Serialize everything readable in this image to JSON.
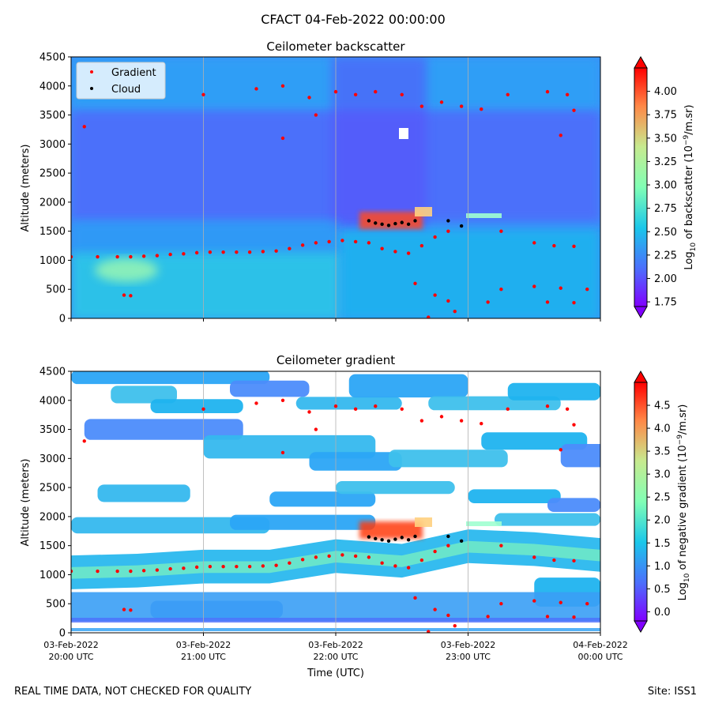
{
  "figure": {
    "suptitle": "CFACT 04-Feb-2022 00:00:00",
    "footer_left": "REAL TIME DATA, NOT CHECKED FOR QUALITY",
    "footer_right": "Site: ISS1"
  },
  "chart_data": [
    {
      "type": "heatmap",
      "title": "Ceilometer backscatter",
      "xlabel": "",
      "ylabel": "Altitude (meters)",
      "ylim": [
        0,
        4500
      ],
      "yticks": [
        "0",
        "500",
        "1000",
        "1500",
        "2000",
        "2500",
        "3000",
        "3500",
        "4000",
        "4500"
      ],
      "xlim": [
        "2022-02-03T20:00",
        "2022-02-04T00:00"
      ],
      "xticks": [],
      "grid": "vertical",
      "legend_location": "upper-left",
      "legend": [
        {
          "label": "Gradient",
          "color": "#ff0000"
        },
        {
          "label": "Cloud",
          "color": "#000000"
        }
      ],
      "colorbar": {
        "label_pre": "Log",
        "label_sub": "10",
        "label_mid": " of backscatter (10",
        "label_sup": "−9",
        "label_post": "/m.sr)",
        "range": [
          1.7,
          4.25
        ],
        "ticks": [
          "1.75",
          "2.00",
          "2.25",
          "2.50",
          "2.75",
          "3.00",
          "3.25",
          "3.50",
          "3.75",
          "4.00"
        ],
        "extend": "both",
        "colormap": "rainbow"
      },
      "background_level": 2.35,
      "cloud_points": [
        [
          22.25,
          1680
        ],
        [
          22.3,
          1640
        ],
        [
          22.35,
          1620
        ],
        [
          22.4,
          1600
        ],
        [
          22.45,
          1630
        ],
        [
          22.5,
          1650
        ],
        [
          22.55,
          1620
        ],
        [
          22.6,
          1680
        ],
        [
          22.85,
          1680
        ],
        [
          22.95,
          1590
        ]
      ],
      "gradient_points": [
        [
          20.0,
          1060
        ],
        [
          20.2,
          1060
        ],
        [
          20.35,
          1060
        ],
        [
          20.45,
          1060
        ],
        [
          20.55,
          1070
        ],
        [
          20.65,
          1080
        ],
        [
          20.75,
          1100
        ],
        [
          20.85,
          1110
        ],
        [
          20.95,
          1130
        ],
        [
          21.05,
          1140
        ],
        [
          21.15,
          1140
        ],
        [
          21.25,
          1140
        ],
        [
          21.35,
          1140
        ],
        [
          21.45,
          1150
        ],
        [
          21.55,
          1160
        ],
        [
          21.65,
          1200
        ],
        [
          21.75,
          1260
        ],
        [
          21.85,
          1300
        ],
        [
          21.95,
          1320
        ],
        [
          22.05,
          1340
        ],
        [
          22.15,
          1320
        ],
        [
          22.25,
          1300
        ],
        [
          22.35,
          1200
        ],
        [
          22.45,
          1150
        ],
        [
          22.55,
          1120
        ],
        [
          22.65,
          1250
        ],
        [
          22.75,
          1400
        ],
        [
          22.85,
          1500
        ],
        [
          20.1,
          3300
        ],
        [
          21.0,
          3850
        ],
        [
          21.4,
          3950
        ],
        [
          21.6,
          4000
        ],
        [
          21.8,
          3800
        ],
        [
          22.0,
          3900
        ],
        [
          22.15,
          3850
        ],
        [
          22.3,
          3900
        ],
        [
          22.5,
          3850
        ],
        [
          22.65,
          3650
        ],
        [
          22.8,
          3720
        ],
        [
          22.95,
          3650
        ],
        [
          23.1,
          3600
        ],
        [
          23.3,
          3850
        ],
        [
          23.6,
          3900
        ],
        [
          23.75,
          3850
        ],
        [
          23.8,
          3580
        ],
        [
          23.7,
          3150
        ],
        [
          23.25,
          1500
        ],
        [
          23.5,
          1300
        ],
        [
          23.65,
          1250
        ],
        [
          23.8,
          1240
        ],
        [
          23.25,
          500
        ],
        [
          23.5,
          550
        ],
        [
          23.7,
          520
        ],
        [
          23.9,
          500
        ],
        [
          23.15,
          280
        ],
        [
          23.6,
          280
        ],
        [
          23.8,
          270
        ],
        [
          22.6,
          600
        ],
        [
          22.75,
          400
        ],
        [
          22.85,
          300
        ],
        [
          22.9,
          120
        ],
        [
          22.7,
          20
        ],
        [
          20.4,
          400
        ],
        [
          20.45,
          390
        ],
        [
          21.6,
          3100
        ],
        [
          21.85,
          3500
        ]
      ]
    },
    {
      "type": "heatmap",
      "title": "Ceilometer gradient",
      "xlabel": "Time (UTC)",
      "ylabel": "Altitude (meters)",
      "ylim": [
        0,
        4500
      ],
      "yticks": [
        "0",
        "500",
        "1000",
        "1500",
        "2000",
        "2500",
        "3000",
        "3500",
        "4000",
        "4500"
      ],
      "xlim": [
        "2022-02-03T20:00",
        "2022-02-04T00:00"
      ],
      "xticks": [
        {
          "date": "03-Feb-2022",
          "time": "20:00 UTC"
        },
        {
          "date": "03-Feb-2022",
          "time": "21:00 UTC"
        },
        {
          "date": "03-Feb-2022",
          "time": "22:00 UTC"
        },
        {
          "date": "03-Feb-2022",
          "time": "23:00 UTC"
        },
        {
          "date": "04-Feb-2022",
          "time": "00:00 UTC"
        }
      ],
      "grid": "vertical",
      "colorbar": {
        "label_pre": "Log",
        "label_sub": "10",
        "label_mid": " of negative gradient (10",
        "label_sup": "−9",
        "label_post": "/m.sr)",
        "range": [
          -0.2,
          5.0
        ],
        "ticks": [
          "0.0",
          "0.5",
          "1.0",
          "1.5",
          "2.0",
          "2.5",
          "3.0",
          "3.5",
          "4.0",
          "4.5"
        ],
        "extend": "both",
        "colormap": "rainbow"
      },
      "band_points": [
        [
          20.0,
          1050
        ],
        [
          20.5,
          1080
        ],
        [
          21.0,
          1150
        ],
        [
          21.5,
          1150
        ],
        [
          22.0,
          1330
        ],
        [
          22.5,
          1250
        ],
        [
          23.0,
          1500
        ],
        [
          23.5,
          1450
        ],
        [
          24.0,
          1350
        ]
      ],
      "cloud_points": [
        [
          22.25,
          1650
        ],
        [
          22.3,
          1620
        ],
        [
          22.35,
          1600
        ],
        [
          22.4,
          1580
        ],
        [
          22.45,
          1610
        ],
        [
          22.5,
          1640
        ],
        [
          22.55,
          1600
        ],
        [
          22.6,
          1660
        ],
        [
          22.85,
          1660
        ],
        [
          22.95,
          1580
        ]
      ],
      "gradient_points": [
        [
          20.0,
          1060
        ],
        [
          20.2,
          1060
        ],
        [
          20.35,
          1060
        ],
        [
          20.45,
          1060
        ],
        [
          20.55,
          1070
        ],
        [
          20.65,
          1080
        ],
        [
          20.75,
          1100
        ],
        [
          20.85,
          1110
        ],
        [
          20.95,
          1130
        ],
        [
          21.05,
          1140
        ],
        [
          21.15,
          1140
        ],
        [
          21.25,
          1140
        ],
        [
          21.35,
          1140
        ],
        [
          21.45,
          1150
        ],
        [
          21.55,
          1160
        ],
        [
          21.65,
          1200
        ],
        [
          21.75,
          1260
        ],
        [
          21.85,
          1300
        ],
        [
          21.95,
          1320
        ],
        [
          22.05,
          1340
        ],
        [
          22.15,
          1320
        ],
        [
          22.25,
          1300
        ],
        [
          22.35,
          1200
        ],
        [
          22.45,
          1150
        ],
        [
          22.55,
          1120
        ],
        [
          22.65,
          1250
        ],
        [
          22.75,
          1400
        ],
        [
          22.85,
          1500
        ],
        [
          20.1,
          3300
        ],
        [
          21.0,
          3850
        ],
        [
          21.4,
          3950
        ],
        [
          21.6,
          4000
        ],
        [
          21.8,
          3800
        ],
        [
          22.0,
          3900
        ],
        [
          22.15,
          3850
        ],
        [
          22.3,
          3900
        ],
        [
          22.5,
          3850
        ],
        [
          22.65,
          3650
        ],
        [
          22.8,
          3720
        ],
        [
          22.95,
          3650
        ],
        [
          23.1,
          3600
        ],
        [
          23.3,
          3850
        ],
        [
          23.6,
          3900
        ],
        [
          23.75,
          3850
        ],
        [
          23.8,
          3580
        ],
        [
          23.7,
          3150
        ],
        [
          23.25,
          1500
        ],
        [
          23.5,
          1300
        ],
        [
          23.65,
          1250
        ],
        [
          23.8,
          1240
        ],
        [
          23.25,
          500
        ],
        [
          23.5,
          550
        ],
        [
          23.7,
          520
        ],
        [
          23.9,
          500
        ],
        [
          23.15,
          280
        ],
        [
          23.6,
          280
        ],
        [
          23.8,
          270
        ],
        [
          22.6,
          600
        ],
        [
          22.75,
          400
        ],
        [
          22.85,
          300
        ],
        [
          22.9,
          120
        ],
        [
          22.7,
          20
        ],
        [
          20.4,
          400
        ],
        [
          20.45,
          390
        ],
        [
          21.6,
          3100
        ],
        [
          21.85,
          3500
        ]
      ]
    }
  ]
}
